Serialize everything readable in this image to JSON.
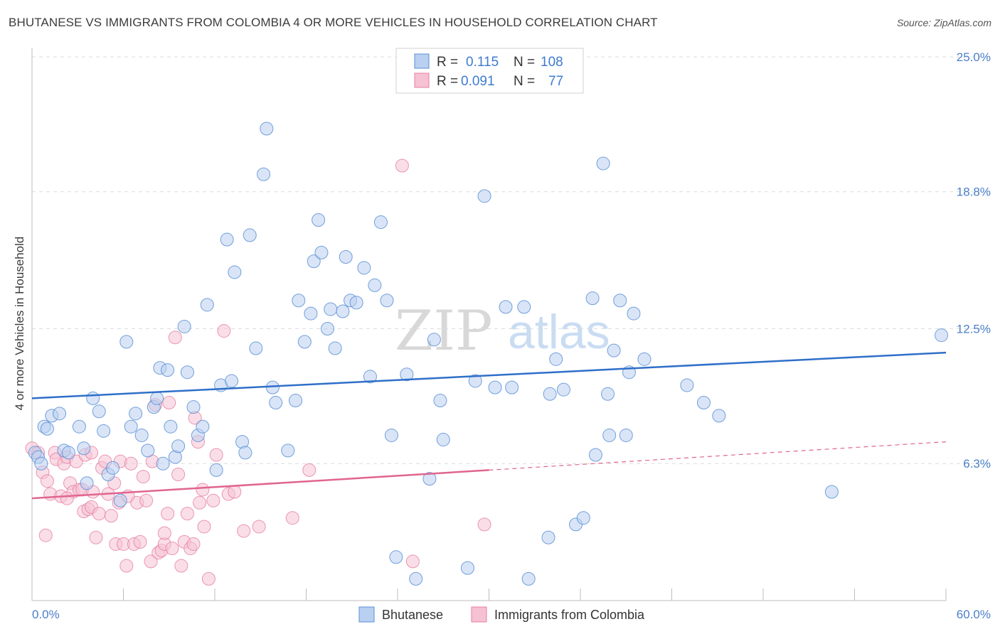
{
  "header": {
    "title": "BHUTANESE VS IMMIGRANTS FROM COLOMBIA 4 OR MORE VEHICLES IN HOUSEHOLD CORRELATION CHART",
    "source": "Source: ZipAtlas.com"
  },
  "watermark": {
    "zip": "ZIP",
    "atlas": "atlas"
  },
  "colors": {
    "blue": "#5b8fd6",
    "blue_fill": "#b9d0f0",
    "blue_line": "#2f6fc9",
    "pink": "#e67ea0",
    "pink_fill": "#f6c2d3",
    "pink_line": "#e0658f",
    "grid": "#dcdcdc",
    "tick_label": "#4a7fc9"
  },
  "legend": {
    "rows": [
      {
        "r_label": "R =",
        "r_value": "0.115",
        "n_label": "N =",
        "n_value": "108"
      },
      {
        "r_label": "R =",
        "r_value": "0.091",
        "n_label": "N =",
        "n_value": "77"
      }
    ]
  },
  "bottom_legend": [
    "Bhutanese",
    "Immigrants from Colombia"
  ],
  "chart_data": {
    "type": "scatter",
    "title": "BHUTANESE VS IMMIGRANTS FROM COLOMBIA 4 OR MORE VEHICLES IN HOUSEHOLD CORRELATION CHART",
    "xlabel": "",
    "ylabel": "4 or more Vehicles in Household",
    "xlim": [
      0,
      60
    ],
    "ylim": [
      0,
      25
    ],
    "x_tick_labels": [
      "0.0%",
      "60.0%"
    ],
    "y_ticks": [
      6.3,
      12.5,
      18.8,
      25.0
    ],
    "y_tick_labels": [
      "6.3%",
      "12.5%",
      "18.8%",
      "25.0%"
    ],
    "legend_position": "top-center",
    "series": [
      {
        "name": "Bhutanese",
        "R": 0.115,
        "N": 108,
        "trend": {
          "x": [
            0,
            60
          ],
          "y": [
            9.3,
            11.4
          ]
        },
        "points": [
          [
            0.2,
            6.8
          ],
          [
            0.4,
            6.6
          ],
          [
            0.6,
            6.3
          ],
          [
            0.8,
            8.0
          ],
          [
            1.0,
            7.9
          ],
          [
            1.3,
            8.5
          ],
          [
            1.8,
            8.6
          ],
          [
            2.1,
            6.9
          ],
          [
            2.4,
            6.8
          ],
          [
            3.1,
            8.0
          ],
          [
            3.4,
            7.0
          ],
          [
            3.6,
            5.4
          ],
          [
            4.0,
            9.3
          ],
          [
            4.4,
            8.7
          ],
          [
            4.7,
            7.8
          ],
          [
            5.0,
            5.8
          ],
          [
            5.3,
            6.1
          ],
          [
            5.8,
            4.6
          ],
          [
            6.2,
            11.9
          ],
          [
            6.5,
            8.0
          ],
          [
            6.8,
            8.6
          ],
          [
            7.2,
            7.6
          ],
          [
            7.6,
            6.9
          ],
          [
            8.0,
            8.9
          ],
          [
            8.2,
            9.3
          ],
          [
            8.4,
            10.7
          ],
          [
            8.6,
            6.3
          ],
          [
            8.9,
            10.6
          ],
          [
            9.1,
            8.0
          ],
          [
            9.4,
            6.6
          ],
          [
            9.6,
            7.1
          ],
          [
            10.0,
            12.6
          ],
          [
            10.2,
            10.5
          ],
          [
            10.6,
            8.9
          ],
          [
            10.9,
            7.6
          ],
          [
            11.2,
            8.0
          ],
          [
            11.5,
            13.6
          ],
          [
            12.1,
            6.0
          ],
          [
            12.4,
            9.9
          ],
          [
            12.8,
            16.6
          ],
          [
            13.1,
            10.1
          ],
          [
            13.3,
            15.1
          ],
          [
            13.8,
            7.3
          ],
          [
            14.0,
            6.8
          ],
          [
            14.3,
            16.8
          ],
          [
            14.7,
            11.6
          ],
          [
            15.2,
            19.6
          ],
          [
            15.4,
            21.7
          ],
          [
            15.8,
            9.8
          ],
          [
            16.0,
            9.1
          ],
          [
            16.8,
            6.9
          ],
          [
            17.3,
            9.2
          ],
          [
            17.5,
            13.8
          ],
          [
            17.9,
            11.9
          ],
          [
            18.3,
            13.2
          ],
          [
            18.5,
            15.6
          ],
          [
            18.8,
            17.5
          ],
          [
            19.0,
            16.0
          ],
          [
            19.4,
            12.5
          ],
          [
            19.6,
            13.4
          ],
          [
            19.9,
            11.6
          ],
          [
            20.4,
            13.3
          ],
          [
            20.6,
            15.8
          ],
          [
            20.9,
            13.8
          ],
          [
            21.3,
            13.7
          ],
          [
            21.8,
            15.3
          ],
          [
            22.2,
            10.3
          ],
          [
            22.5,
            14.5
          ],
          [
            22.9,
            17.4
          ],
          [
            23.3,
            13.8
          ],
          [
            23.6,
            7.6
          ],
          [
            23.9,
            2.0
          ],
          [
            24.6,
            10.4
          ],
          [
            25.2,
            1.0
          ],
          [
            26.1,
            5.6
          ],
          [
            26.4,
            12.0
          ],
          [
            26.8,
            9.2
          ],
          [
            27.0,
            7.4
          ],
          [
            28.6,
            1.5
          ],
          [
            29.1,
            10.1
          ],
          [
            29.7,
            18.6
          ],
          [
            30.4,
            9.8
          ],
          [
            31.1,
            13.5
          ],
          [
            31.5,
            9.8
          ],
          [
            32.3,
            13.5
          ],
          [
            32.6,
            1.0
          ],
          [
            33.9,
            2.9
          ],
          [
            34.0,
            9.5
          ],
          [
            34.4,
            11.1
          ],
          [
            34.9,
            9.7
          ],
          [
            35.7,
            3.5
          ],
          [
            36.2,
            3.8
          ],
          [
            36.8,
            13.9
          ],
          [
            37.0,
            6.7
          ],
          [
            37.5,
            20.1
          ],
          [
            37.8,
            9.5
          ],
          [
            37.9,
            7.6
          ],
          [
            38.2,
            11.5
          ],
          [
            38.6,
            13.8
          ],
          [
            39.0,
            7.6
          ],
          [
            39.2,
            10.5
          ],
          [
            39.5,
            13.2
          ],
          [
            40.2,
            11.1
          ],
          [
            43.0,
            9.9
          ],
          [
            44.1,
            9.1
          ],
          [
            45.1,
            8.5
          ],
          [
            52.5,
            5.0
          ],
          [
            59.7,
            12.2
          ]
        ]
      },
      {
        "name": "Immigrants from Colombia",
        "R": 0.091,
        "N": 77,
        "trend": {
          "x": [
            0,
            30
          ],
          "y": [
            4.7,
            6.0
          ]
        },
        "trend_extension": {
          "x": [
            30,
            60
          ],
          "y": [
            6.0,
            7.3
          ]
        },
        "points": [
          [
            0.0,
            7.0
          ],
          [
            0.4,
            6.8
          ],
          [
            0.7,
            5.9
          ],
          [
            0.9,
            3.0
          ],
          [
            1.0,
            5.5
          ],
          [
            1.2,
            4.9
          ],
          [
            1.5,
            6.8
          ],
          [
            1.6,
            6.5
          ],
          [
            1.9,
            4.8
          ],
          [
            2.1,
            6.3
          ],
          [
            2.3,
            6.6
          ],
          [
            2.5,
            5.4
          ],
          [
            2.7,
            5.0
          ],
          [
            2.9,
            6.4
          ],
          [
            3.1,
            5.1
          ],
          [
            3.3,
            5.1
          ],
          [
            3.4,
            4.1
          ],
          [
            3.5,
            6.7
          ],
          [
            3.7,
            4.2
          ],
          [
            3.9,
            4.3
          ],
          [
            4.0,
            5.0
          ],
          [
            4.2,
            2.9
          ],
          [
            4.4,
            4.0
          ],
          [
            4.6,
            6.1
          ],
          [
            4.8,
            6.4
          ],
          [
            5.0,
            4.9
          ],
          [
            5.2,
            3.9
          ],
          [
            5.5,
            2.6
          ],
          [
            5.7,
            4.5
          ],
          [
            5.8,
            6.4
          ],
          [
            6.0,
            2.6
          ],
          [
            6.2,
            1.6
          ],
          [
            6.3,
            4.8
          ],
          [
            6.5,
            6.3
          ],
          [
            6.7,
            2.6
          ],
          [
            6.9,
            4.5
          ],
          [
            7.1,
            2.7
          ],
          [
            7.3,
            5.7
          ],
          [
            7.5,
            4.6
          ],
          [
            7.8,
            1.8
          ],
          [
            7.9,
            6.4
          ],
          [
            8.1,
            9.0
          ],
          [
            8.3,
            2.2
          ],
          [
            8.5,
            2.3
          ],
          [
            8.7,
            2.6
          ],
          [
            8.9,
            4.0
          ],
          [
            9.0,
            9.1
          ],
          [
            9.2,
            2.4
          ],
          [
            9.4,
            12.1
          ],
          [
            9.6,
            5.8
          ],
          [
            9.8,
            1.6
          ],
          [
            10.0,
            2.7
          ],
          [
            10.2,
            4.0
          ],
          [
            10.4,
            2.4
          ],
          [
            10.6,
            2.6
          ],
          [
            10.7,
            8.4
          ],
          [
            10.9,
            7.3
          ],
          [
            11.0,
            4.5
          ],
          [
            11.2,
            5.1
          ],
          [
            11.3,
            3.4
          ],
          [
            11.6,
            1.0
          ],
          [
            11.9,
            4.6
          ],
          [
            12.1,
            6.7
          ],
          [
            12.6,
            12.4
          ],
          [
            12.9,
            4.9
          ],
          [
            13.3,
            5.0
          ],
          [
            13.9,
            3.2
          ],
          [
            14.9,
            3.4
          ],
          [
            17.1,
            3.8
          ],
          [
            18.2,
            6.0
          ],
          [
            25.0,
            1.8
          ],
          [
            24.3,
            20.0
          ],
          [
            29.7,
            3.5
          ],
          [
            3.9,
            6.8
          ],
          [
            2.3,
            4.7
          ],
          [
            8.7,
            3.1
          ],
          [
            5.4,
            5.4
          ]
        ]
      }
    ]
  }
}
